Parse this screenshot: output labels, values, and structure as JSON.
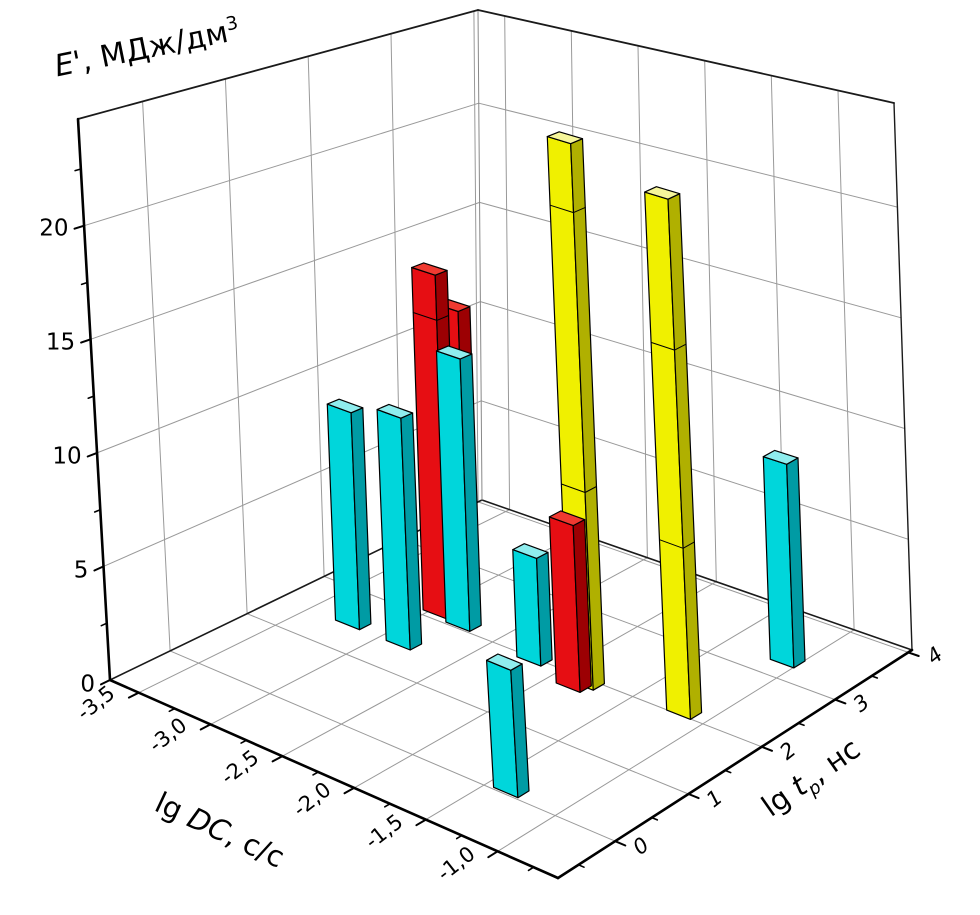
{
  "labels": {
    "z_title": {
      "main": "E'",
      "rest": ", МДж/дм",
      "sup": "3"
    },
    "x_title": {
      "prefix": "lg ",
      "var": "DC",
      "rest": ", с/с"
    },
    "y_title": {
      "prefix": "lg ",
      "var": "t",
      "sub": "p",
      "rest": ", нс"
    }
  },
  "chart_data": {
    "type": "bar3d",
    "title": "",
    "background": "#ffffff",
    "grid_color": "#999999",
    "axis_color": "#000000",
    "legend": "none",
    "x_axis": {
      "title": "lg DC, с/с",
      "range": [
        -3.7,
        -0.58
      ],
      "major_ticks": [
        {
          "value": -3.5,
          "label": "-3,5"
        },
        {
          "value": -3.0,
          "label": "-3,0"
        },
        {
          "value": -2.5,
          "label": "-2,5"
        },
        {
          "value": -2.0,
          "label": "-2,0"
        },
        {
          "value": -1.5,
          "label": "-1,5"
        },
        {
          "value": -1.0,
          "label": "-1,0"
        }
      ],
      "minor_ticks": [
        -3.25,
        -2.75,
        -2.25,
        -1.75,
        -1.25,
        -0.75
      ]
    },
    "y_axis": {
      "title": "lg tp, нс",
      "range": [
        -0.78,
        4.05
      ],
      "italic_tick_labels": true,
      "major_ticks": [
        {
          "value": 0,
          "label": "0"
        },
        {
          "value": 1,
          "label": "1"
        },
        {
          "value": 2,
          "label": "2"
        },
        {
          "value": 3,
          "label": "3"
        },
        {
          "value": 4,
          "label": "4"
        }
      ],
      "minor_ticks": [
        -0.5,
        0.5,
        1.5,
        2.5,
        3.5
      ]
    },
    "z_axis": {
      "title": "E', МДж/дм³",
      "range": [
        0,
        24.7
      ],
      "major_ticks": [
        {
          "value": 0,
          "label": "0"
        },
        {
          "value": 5,
          "label": "5"
        },
        {
          "value": 10,
          "label": "10"
        },
        {
          "value": 15,
          "label": "15"
        },
        {
          "value": 20,
          "label": "20"
        }
      ],
      "minor_ticks": [
        2.5,
        7.5,
        12.5,
        17.5,
        22.5
      ]
    },
    "series": [
      {
        "name": "cyan-series",
        "colors": {
          "front": "#00D6DB",
          "top": "#8FEDEE",
          "side": "#009BA4"
        },
        "bars": [
          {
            "x": -3.22,
            "y": 1.5,
            "z": 10.0
          },
          {
            "x": -2.86,
            "y": 1.5,
            "z": 10.6
          },
          {
            "x": -2.76,
            "y": 2.1,
            "z": 12.6
          },
          {
            "x": -2.2,
            "y": 2.0,
            "z": 4.9
          },
          {
            "x": -1.36,
            "y": 0.1,
            "z": 5.5
          },
          {
            "x": -1.08,
            "y": 3.3,
            "z": 9.2
          }
        ]
      },
      {
        "name": "red-series",
        "colors": {
          "front": "#E60E13",
          "top": "#EF3A31",
          "side": "#9C0003"
        },
        "bars": [
          {
            "x": -2.95,
            "y": 2.15,
            "z": 16.0,
            "segments": [
              13.9
            ]
          },
          {
            "x": -2.95,
            "y": 2.42,
            "z": 13.9
          },
          {
            "x": -1.84,
            "y": 1.85,
            "z": 7.5
          }
        ]
      },
      {
        "name": "yellow-series",
        "colors": {
          "front": "#F0F000",
          "top": "#F6F69A",
          "side": "#B0B000"
        },
        "bars": [
          {
            "x": -1.8,
            "y": 1.95,
            "z": 24.6,
            "segments": [
              8.9,
              21.5
            ]
          },
          {
            "x": -1.17,
            "y": 2.07,
            "z": 23.1,
            "segments": [
              7.6,
              16.4
            ]
          }
        ]
      }
    ]
  }
}
